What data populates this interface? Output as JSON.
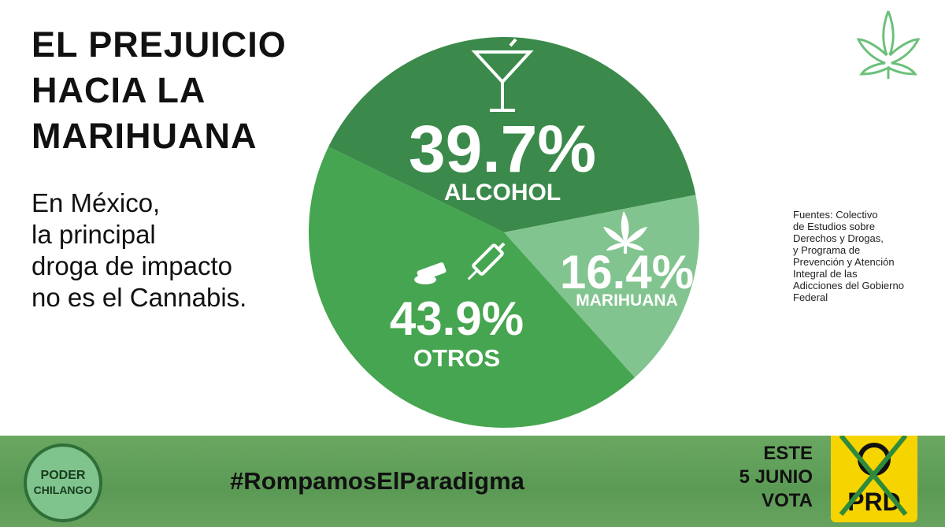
{
  "chart_data": {
    "type": "pie",
    "title_lines": [
      "EL PREJUICIO",
      "HACIA LA",
      "MARIHUANA"
    ],
    "subtitle_lines": [
      "En México,",
      "la principal",
      "droga de impacto",
      "no es el Cannabis."
    ],
    "source_lines": [
      "Fuentes: Colectivo",
      "de Estudios sobre",
      "Derechos y Drogas,",
      "y Programa de",
      "Prevención y Atención",
      "Integral de las",
      "Adicciones del Gobierno",
      "Federal"
    ],
    "categories": [
      "ALCOHOL",
      "MARIHUANA",
      "OTROS"
    ],
    "values": [
      39.7,
      16.4,
      43.9
    ],
    "value_labels": [
      "39.7%",
      "16.4%",
      "43.9%"
    ],
    "colors": [
      "#3b8a4b",
      "#82c48f",
      "#46a550"
    ]
  },
  "footer": {
    "hashtag": "#RompamosElParadigma",
    "logo_lines": [
      "PODER",
      "CHILANGO"
    ],
    "cta_lines": [
      "ESTE",
      "5 JUNIO",
      "VOTA"
    ],
    "party": "PRD"
  }
}
